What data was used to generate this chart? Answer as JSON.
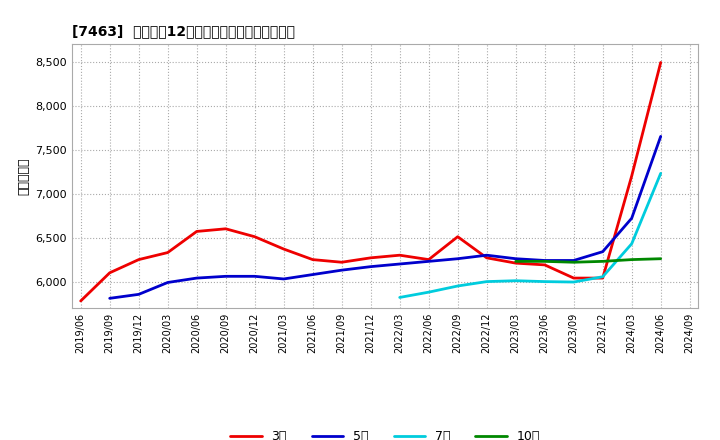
{
  "title": "[7463]  経常利益12か月移動合計の平均値の推移",
  "ylabel": "（百万円）",
  "background_color": "#ffffff",
  "plot_bg_color": "#ffffff",
  "grid_color": "#aaaaaa",
  "ylim": [
    5700,
    8700
  ],
  "yticks": [
    6000,
    6500,
    7000,
    7500,
    8000,
    8500
  ],
  "x_labels": [
    "2019/06",
    "2019/09",
    "2019/12",
    "2020/03",
    "2020/06",
    "2020/09",
    "2020/12",
    "2021/03",
    "2021/06",
    "2021/09",
    "2021/12",
    "2022/03",
    "2022/06",
    "2022/09",
    "2022/12",
    "2023/03",
    "2023/06",
    "2023/09",
    "2023/12",
    "2024/03",
    "2024/06",
    "2024/09"
  ],
  "series": {
    "3年": {
      "color": "#ee0000",
      "data_x": [
        0,
        1,
        2,
        3,
        4,
        5,
        6,
        7,
        8,
        9,
        10,
        11,
        12,
        13,
        14,
        15,
        16,
        17,
        18,
        19,
        20
      ],
      "data_y": [
        5780,
        6100,
        6250,
        6330,
        6570,
        6600,
        6510,
        6370,
        6250,
        6220,
        6270,
        6300,
        6250,
        6510,
        6270,
        6210,
        6190,
        6040,
        6040,
        7200,
        8490
      ]
    },
    "5年": {
      "color": "#0000cc",
      "data_x": [
        1,
        2,
        3,
        4,
        5,
        6,
        7,
        8,
        9,
        10,
        11,
        12,
        13,
        14,
        15,
        16,
        17,
        18,
        19,
        20
      ],
      "data_y": [
        5810,
        5855,
        5990,
        6040,
        6060,
        6060,
        6030,
        6080,
        6130,
        6170,
        6200,
        6230,
        6260,
        6300,
        6260,
        6240,
        6240,
        6340,
        6720,
        7650
      ]
    },
    "7年": {
      "color": "#00ccdd",
      "data_x": [
        11,
        12,
        13,
        14,
        15,
        16,
        17,
        18,
        19,
        20
      ],
      "data_y": [
        5820,
        5880,
        5950,
        6000,
        6010,
        6000,
        5995,
        6055,
        6430,
        7230
      ]
    },
    "10年": {
      "color": "#008800",
      "data_x": [
        15,
        16,
        17,
        18,
        19,
        20
      ],
      "data_y": [
        6230,
        6230,
        6220,
        6230,
        6250,
        6260
      ]
    }
  },
  "legend_labels": [
    "3年",
    "5年",
    "7年",
    "10年"
  ]
}
